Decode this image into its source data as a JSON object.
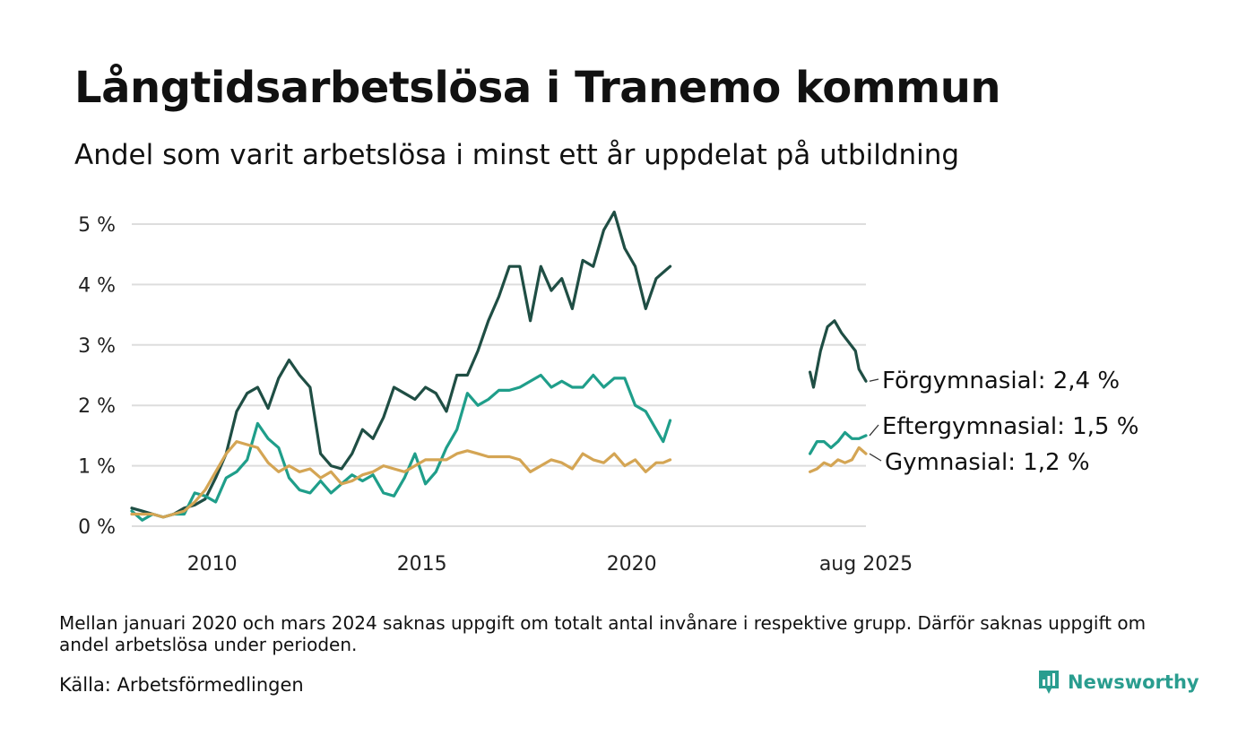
{
  "title": "Långtidsarbetslösa i Tranemo kommun",
  "subtitle": "Andel som varit arbetslösa i minst ett år uppdelat på utbildning",
  "note": "Mellan januari 2020 och mars 2024 saknas uppgift om totalt antal invånare i respektive grupp. Därför saknas uppgift om andel arbetslösa under perioden.",
  "source": "Källa: Arbetsförmedlingen",
  "logo_text": "Newsworthy",
  "chart_data": {
    "type": "line",
    "ylim": [
      0,
      5.5
    ],
    "y_ticks": [
      0,
      1,
      2,
      3,
      4,
      5
    ],
    "y_tick_labels": [
      "0 %",
      "1 %",
      "2 %",
      "3 %",
      "4 %",
      "5 %"
    ],
    "x_ticks": [
      {
        "x": "2010-01",
        "label": "2010"
      },
      {
        "x": "2015-01",
        "label": "2015"
      },
      {
        "x": "2020-01",
        "label": "2020"
      },
      {
        "x": "2025-08",
        "label": "aug 2025"
      }
    ],
    "xlim": [
      "2008-02",
      "2025-08"
    ],
    "grid": true,
    "series": [
      {
        "name": "Förgymnasial",
        "end_label": "Förgymnasial: 2,4 %",
        "color": "#1f4e44",
        "segments": [
          [
            [
              "2008-02",
              0.3
            ],
            [
              "2008-05",
              0.25
            ],
            [
              "2008-08",
              0.2
            ],
            [
              "2008-11",
              0.15
            ],
            [
              "2009-02",
              0.2
            ],
            [
              "2009-05",
              0.3
            ],
            [
              "2009-08",
              0.35
            ],
            [
              "2009-11",
              0.45
            ],
            [
              "2010-02",
              0.8
            ],
            [
              "2010-05",
              1.2
            ],
            [
              "2010-08",
              1.9
            ],
            [
              "2010-11",
              2.2
            ],
            [
              "2011-02",
              2.3
            ],
            [
              "2011-05",
              1.95
            ],
            [
              "2011-08",
              2.45
            ],
            [
              "2011-11",
              2.75
            ],
            [
              "2012-02",
              2.5
            ],
            [
              "2012-05",
              2.3
            ],
            [
              "2012-08",
              1.2
            ],
            [
              "2012-11",
              1.0
            ],
            [
              "2013-02",
              0.95
            ],
            [
              "2013-05",
              1.2
            ],
            [
              "2013-08",
              1.6
            ],
            [
              "2013-11",
              1.45
            ],
            [
              "2014-02",
              1.8
            ],
            [
              "2014-05",
              2.3
            ],
            [
              "2014-08",
              2.2
            ],
            [
              "2014-11",
              2.1
            ],
            [
              "2015-02",
              2.3
            ],
            [
              "2015-05",
              2.2
            ],
            [
              "2015-08",
              1.9
            ],
            [
              "2015-11",
              2.5
            ],
            [
              "2016-02",
              2.5
            ],
            [
              "2016-05",
              2.9
            ],
            [
              "2016-08",
              3.4
            ],
            [
              "2016-11",
              3.8
            ],
            [
              "2017-02",
              4.3
            ],
            [
              "2017-05",
              4.3
            ],
            [
              "2017-08",
              3.4
            ],
            [
              "2017-11",
              4.3
            ],
            [
              "2018-02",
              3.9
            ],
            [
              "2018-05",
              4.1
            ],
            [
              "2018-08",
              3.6
            ],
            [
              "2018-11",
              4.4
            ],
            [
              "2019-02",
              4.3
            ],
            [
              "2019-05",
              4.9
            ],
            [
              "2019-08",
              5.2
            ],
            [
              "2019-11",
              4.6
            ],
            [
              "2020-02",
              4.3
            ],
            [
              "2020-05",
              3.6
            ],
            [
              "2020-08",
              4.1
            ],
            [
              "2020-11",
              4.25
            ],
            [
              "2020-12",
              4.3
            ]
          ],
          [
            [
              "2024-04",
              2.55
            ],
            [
              "2024-05",
              2.3
            ],
            [
              "2024-07",
              2.9
            ],
            [
              "2024-09",
              3.3
            ],
            [
              "2024-11",
              3.4
            ],
            [
              "2025-01",
              3.2
            ],
            [
              "2025-03",
              3.05
            ],
            [
              "2025-05",
              2.9
            ],
            [
              "2025-06",
              2.6
            ],
            [
              "2025-08",
              2.4
            ]
          ]
        ]
      },
      {
        "name": "Eftergymnasial",
        "end_label": "Eftergymnasial: 1,5 %",
        "color": "#1f9e8a",
        "segments": [
          [
            [
              "2008-02",
              0.25
            ],
            [
              "2008-05",
              0.1
            ],
            [
              "2008-08",
              0.2
            ],
            [
              "2008-11",
              0.15
            ],
            [
              "2009-02",
              0.2
            ],
            [
              "2009-05",
              0.2
            ],
            [
              "2009-08",
              0.55
            ],
            [
              "2009-11",
              0.5
            ],
            [
              "2010-02",
              0.4
            ],
            [
              "2010-05",
              0.8
            ],
            [
              "2010-08",
              0.9
            ],
            [
              "2010-11",
              1.1
            ],
            [
              "2011-02",
              1.7
            ],
            [
              "2011-05",
              1.45
            ],
            [
              "2011-08",
              1.3
            ],
            [
              "2011-11",
              0.8
            ],
            [
              "2012-02",
              0.6
            ],
            [
              "2012-05",
              0.55
            ],
            [
              "2012-08",
              0.75
            ],
            [
              "2012-11",
              0.55
            ],
            [
              "2013-02",
              0.7
            ],
            [
              "2013-05",
              0.85
            ],
            [
              "2013-08",
              0.75
            ],
            [
              "2013-11",
              0.85
            ],
            [
              "2014-02",
              0.55
            ],
            [
              "2014-05",
              0.5
            ],
            [
              "2014-08",
              0.8
            ],
            [
              "2014-11",
              1.2
            ],
            [
              "2015-02",
              0.7
            ],
            [
              "2015-05",
              0.9
            ],
            [
              "2015-08",
              1.3
            ],
            [
              "2015-11",
              1.6
            ],
            [
              "2016-02",
              2.2
            ],
            [
              "2016-05",
              2.0
            ],
            [
              "2016-08",
              2.1
            ],
            [
              "2016-11",
              2.25
            ],
            [
              "2017-02",
              2.25
            ],
            [
              "2017-05",
              2.3
            ],
            [
              "2017-08",
              2.4
            ],
            [
              "2017-11",
              2.5
            ],
            [
              "2018-02",
              2.3
            ],
            [
              "2018-05",
              2.4
            ],
            [
              "2018-08",
              2.3
            ],
            [
              "2018-11",
              2.3
            ],
            [
              "2019-02",
              2.5
            ],
            [
              "2019-05",
              2.3
            ],
            [
              "2019-08",
              2.45
            ],
            [
              "2019-11",
              2.45
            ],
            [
              "2020-02",
              2.0
            ],
            [
              "2020-05",
              1.9
            ],
            [
              "2020-08",
              1.6
            ],
            [
              "2020-10",
              1.4
            ],
            [
              "2020-12",
              1.75
            ]
          ],
          [
            [
              "2024-04",
              1.2
            ],
            [
              "2024-06",
              1.4
            ],
            [
              "2024-08",
              1.4
            ],
            [
              "2024-10",
              1.3
            ],
            [
              "2024-12",
              1.4
            ],
            [
              "2025-02",
              1.55
            ],
            [
              "2025-04",
              1.45
            ],
            [
              "2025-06",
              1.45
            ],
            [
              "2025-08",
              1.5
            ]
          ]
        ]
      },
      {
        "name": "Gymnasial",
        "end_label": "Gymnasial: 1,2 %",
        "color": "#d4a554",
        "segments": [
          [
            [
              "2008-02",
              0.2
            ],
            [
              "2008-05",
              0.2
            ],
            [
              "2008-08",
              0.2
            ],
            [
              "2008-11",
              0.15
            ],
            [
              "2009-02",
              0.2
            ],
            [
              "2009-05",
              0.25
            ],
            [
              "2009-08",
              0.4
            ],
            [
              "2009-11",
              0.6
            ],
            [
              "2010-02",
              0.9
            ],
            [
              "2010-05",
              1.2
            ],
            [
              "2010-08",
              1.4
            ],
            [
              "2010-11",
              1.35
            ],
            [
              "2011-02",
              1.3
            ],
            [
              "2011-05",
              1.05
            ],
            [
              "2011-08",
              0.9
            ],
            [
              "2011-11",
              1.0
            ],
            [
              "2012-02",
              0.9
            ],
            [
              "2012-05",
              0.95
            ],
            [
              "2012-08",
              0.8
            ],
            [
              "2012-11",
              0.9
            ],
            [
              "2013-02",
              0.7
            ],
            [
              "2013-05",
              0.75
            ],
            [
              "2013-08",
              0.85
            ],
            [
              "2013-11",
              0.9
            ],
            [
              "2014-02",
              1.0
            ],
            [
              "2014-05",
              0.95
            ],
            [
              "2014-08",
              0.9
            ],
            [
              "2014-11",
              1.0
            ],
            [
              "2015-02",
              1.1
            ],
            [
              "2015-05",
              1.1
            ],
            [
              "2015-08",
              1.1
            ],
            [
              "2015-11",
              1.2
            ],
            [
              "2016-02",
              1.25
            ],
            [
              "2016-05",
              1.2
            ],
            [
              "2016-08",
              1.15
            ],
            [
              "2016-11",
              1.15
            ],
            [
              "2017-02",
              1.15
            ],
            [
              "2017-05",
              1.1
            ],
            [
              "2017-08",
              0.9
            ],
            [
              "2017-11",
              1.0
            ],
            [
              "2018-02",
              1.1
            ],
            [
              "2018-05",
              1.05
            ],
            [
              "2018-08",
              0.95
            ],
            [
              "2018-11",
              1.2
            ],
            [
              "2019-02",
              1.1
            ],
            [
              "2019-05",
              1.05
            ],
            [
              "2019-08",
              1.2
            ],
            [
              "2019-11",
              1.0
            ],
            [
              "2020-02",
              1.1
            ],
            [
              "2020-05",
              0.9
            ],
            [
              "2020-08",
              1.05
            ],
            [
              "2020-10",
              1.05
            ],
            [
              "2020-12",
              1.1
            ]
          ],
          [
            [
              "2024-04",
              0.9
            ],
            [
              "2024-06",
              0.95
            ],
            [
              "2024-08",
              1.05
            ],
            [
              "2024-10",
              1.0
            ],
            [
              "2024-12",
              1.1
            ],
            [
              "2025-02",
              1.05
            ],
            [
              "2025-04",
              1.1
            ],
            [
              "2025-06",
              1.3
            ],
            [
              "2025-08",
              1.2
            ]
          ]
        ]
      }
    ]
  }
}
